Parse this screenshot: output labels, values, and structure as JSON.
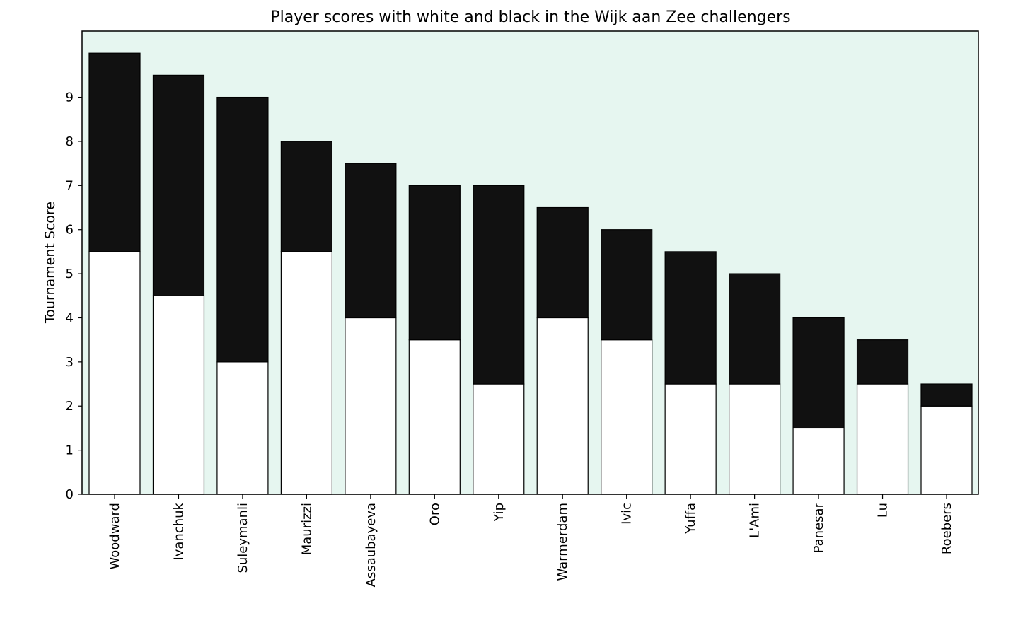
{
  "chart_data": {
    "type": "bar",
    "stacked": true,
    "title": "Player scores with white and black in the Wijk aan Zee challengers",
    "xlabel": "",
    "ylabel": "Tournament Score",
    "ylim": [
      0,
      10.5
    ],
    "yticks": [
      "0",
      "1",
      "2",
      "3",
      "4",
      "5",
      "6",
      "7",
      "8",
      "9"
    ],
    "categories": [
      "Woodward",
      "Ivanchuk",
      "Suleymanli",
      "Maurizzi",
      "Assaubayeva",
      "Oro",
      "Yip",
      "Warmerdam",
      "Ivic",
      "Yuffa",
      "L'Ami",
      "Panesar",
      "Lu",
      "Roebers"
    ],
    "series": [
      {
        "values": [
          5.5,
          4.5,
          3,
          5.5,
          4,
          3.5,
          2.5,
          4,
          3.5,
          2.5,
          2.5,
          1.5,
          2.5,
          2
        ]
      },
      {
        "values": [
          4.5,
          5,
          6,
          2.5,
          3.5,
          3.5,
          4.5,
          2.5,
          2.5,
          3,
          2.5,
          2.5,
          1,
          0.5
        ]
      }
    ],
    "colors": {
      "background": "#e6f6f0",
      "white_bar": "#ffffff",
      "black_bar": "#111111",
      "edge": "#000000"
    },
    "grid": false,
    "legend": false
  }
}
